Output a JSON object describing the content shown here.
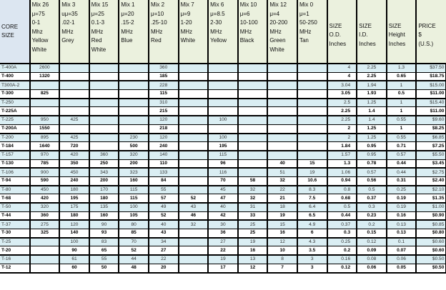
{
  "header": {
    "core": [
      "CORE",
      "SIZE"
    ],
    "columns": [
      [
        "Mix 26",
        "μ=75",
        "0-1",
        "Mhz",
        "Yellow",
        "White"
      ],
      [
        "Mix 3",
        "uμ=35",
        ".02-1",
        "MHz",
        "Grey"
      ],
      [
        "Mix 15",
        "μ=25",
        "0.1-3",
        "MHz",
        "Red",
        "White"
      ],
      [
        "Mix 1",
        "μ=20",
        ".15-2",
        "MHz",
        "Blue"
      ],
      [
        "Mix 2",
        "μ=10",
        ".25-10",
        "MHz",
        "Red"
      ],
      [
        "Mix 7",
        "μ=9",
        "1-20",
        "MHz",
        "White"
      ],
      [
        "Mix 6",
        "μ=8.5",
        "2-30",
        "MHz",
        "Yellow"
      ],
      [
        "Mix 10",
        "μ=6",
        "10-100",
        "MHz",
        "Black"
      ],
      [
        "Mix 12",
        "μ=4",
        "20-200",
        "MHz",
        "Green",
        "White"
      ],
      [
        "Mix 0",
        "μ=1",
        "50-250",
        "MHz",
        "Tan"
      ]
    ],
    "sizes": [
      [
        "SIZE",
        "O.D.",
        "Inches"
      ],
      [
        "SIZE",
        "I.D.",
        "Inches"
      ],
      [
        "SIZE",
        "Height",
        "Inches"
      ],
      [
        "PRICE",
        "$",
        "(U.S.)"
      ]
    ]
  },
  "rows": [
    {
      "name": "T-400A",
      "bold": false,
      "values": [
        "2600",
        "",
        "",
        "",
        "360",
        "",
        "",
        "",
        "",
        "",
        "4",
        "2.25",
        "1.3",
        "$37.50"
      ]
    },
    {
      "name": "T-400",
      "bold": true,
      "values": [
        "1320",
        "",
        "",
        "",
        "185",
        "",
        "",
        "",
        "",
        "",
        "4",
        "2.25",
        "0.65",
        "$18.75"
      ]
    },
    {
      "name": "T300A-2",
      "bold": false,
      "values": [
        "",
        "",
        "",
        "",
        "228",
        "",
        "",
        "",
        "",
        "",
        "3.04",
        "1.94",
        "1",
        "$15.00"
      ]
    },
    {
      "name": "T-300",
      "bold": true,
      "values": [
        "825",
        "",
        "",
        "",
        "115",
        "",
        "",
        "",
        "",
        "",
        "3.05",
        "1.93",
        "0.5",
        "$11.00"
      ]
    },
    {
      "name": "T-250",
      "bold": false,
      "values": [
        "",
        "",
        "",
        "",
        "310",
        "",
        "",
        "",
        "",
        "",
        "2.5",
        "1.25",
        "1",
        "$15.40"
      ]
    },
    {
      "name": "T-225A",
      "bold": true,
      "values": [
        "",
        "",
        "",
        "",
        "215",
        "",
        "",
        "",
        "",
        "",
        "2.25",
        "1.4",
        "1",
        "$11.00"
      ]
    },
    {
      "name": "T-225",
      "bold": false,
      "values": [
        "950",
        "425",
        "",
        "",
        "120",
        "",
        "100",
        "",
        "",
        "",
        "2.25",
        "1.4",
        "0.55",
        "$9.60"
      ]
    },
    {
      "name": "T-200A",
      "bold": true,
      "values": [
        "1550",
        "",
        "",
        "",
        "218",
        "",
        "",
        "",
        "",
        "",
        "2",
        "1.25",
        "1",
        "$8.25"
      ]
    },
    {
      "name": "T-200",
      "bold": false,
      "values": [
        "895",
        "425",
        "",
        "230",
        "120",
        "",
        "100",
        "",
        "",
        "",
        "2",
        "1.25",
        "0.55",
        "$6.85"
      ]
    },
    {
      "name": "T-184",
      "bold": true,
      "values": [
        "1640",
        "720",
        "",
        "500",
        "240",
        "",
        "195",
        "",
        "",
        "",
        "1.84",
        "0.95",
        "0.71",
        "$7.25"
      ]
    },
    {
      "name": "T-157",
      "bold": false,
      "values": [
        "970",
        "420",
        "360",
        "320",
        "140",
        "",
        "115",
        "",
        "",
        "",
        "1.57",
        "0.95",
        "0.57",
        "$5.50"
      ]
    },
    {
      "name": "T-130",
      "bold": true,
      "values": [
        "785",
        "350",
        "250",
        "200",
        "110",
        "",
        "96",
        "",
        "40",
        "15",
        "1.3",
        "0.78",
        "0.44",
        "$3.45"
      ]
    },
    {
      "name": "T-106",
      "bold": false,
      "values": [
        "900",
        "450",
        "343",
        "323",
        "133",
        "",
        "116",
        "",
        "51",
        "19",
        "1.06",
        "0.57",
        "0.44",
        "$2.75"
      ]
    },
    {
      "name": "T-94",
      "bold": true,
      "values": [
        "590",
        "240",
        "200",
        "160",
        "84",
        "",
        "70",
        "58",
        "32",
        "10.6",
        "0.94",
        "0.56",
        "0.31",
        "$2.40"
      ]
    },
    {
      "name": "T-80",
      "bold": false,
      "values": [
        "450",
        "180",
        "170",
        "115",
        "55",
        "",
        "45",
        "32",
        "22",
        "8.3",
        "0.8",
        "0.5",
        "0.25",
        "$2.10"
      ]
    },
    {
      "name": "T-68",
      "bold": true,
      "values": [
        "420",
        "195",
        "180",
        "115",
        "57",
        "52",
        "47",
        "32",
        "21",
        "7.5",
        "0.68",
        "0.37",
        "0.19",
        "$1.35"
      ]
    },
    {
      "name": "T-50",
      "bold": false,
      "values": [
        "320",
        "175",
        "135",
        "100",
        "49",
        "43",
        "40",
        "31",
        "18",
        "6.4",
        "0.5",
        "0.3",
        "0.19",
        "$1.00"
      ]
    },
    {
      "name": "T-44",
      "bold": true,
      "values": [
        "360",
        "180",
        "160",
        "105",
        "52",
        "46",
        "42",
        "33",
        "19",
        "6.5",
        "0.44",
        "0.23",
        "0.16",
        "$0.90"
      ]
    },
    {
      "name": "T-37",
      "bold": false,
      "values": [
        "275",
        "120",
        "90",
        "80",
        "40",
        "32",
        "30",
        "25",
        "15",
        "4.9",
        "0.37",
        "0.2",
        "0.13",
        "$0.85"
      ]
    },
    {
      "name": "T-30",
      "bold": true,
      "values": [
        "325",
        "140",
        "93",
        "85",
        "43",
        "",
        "36",
        "25",
        "16",
        "6",
        "0.3",
        "0.15",
        "0.13",
        "$0.80"
      ]
    },
    {
      "name": "T-25",
      "bold": false,
      "values": [
        "",
        "100",
        "83",
        "70",
        "34",
        "",
        "27",
        "19",
        "12",
        "4.3",
        "0.25",
        "0.12",
        "0.1",
        "$0.60"
      ]
    },
    {
      "name": "T-20",
      "bold": true,
      "values": [
        "",
        "90",
        "65",
        "52",
        "27",
        "",
        "22",
        "16",
        "10",
        "3.5",
        "0.2",
        "0.09",
        "0.07",
        "$0.60"
      ]
    },
    {
      "name": "T-16",
      "bold": false,
      "values": [
        "",
        "61",
        "55",
        "44",
        "22",
        "",
        "19",
        "13",
        "8",
        "3",
        "0.16",
        "0.08",
        "0.06",
        "$0.50"
      ]
    },
    {
      "name": "T-12",
      "bold": true,
      "values": [
        "",
        "60",
        "50",
        "48",
        "20",
        "",
        "17",
        "12",
        "7",
        "3",
        "0.12",
        "0.06",
        "0.05",
        "$0.50"
      ]
    }
  ]
}
